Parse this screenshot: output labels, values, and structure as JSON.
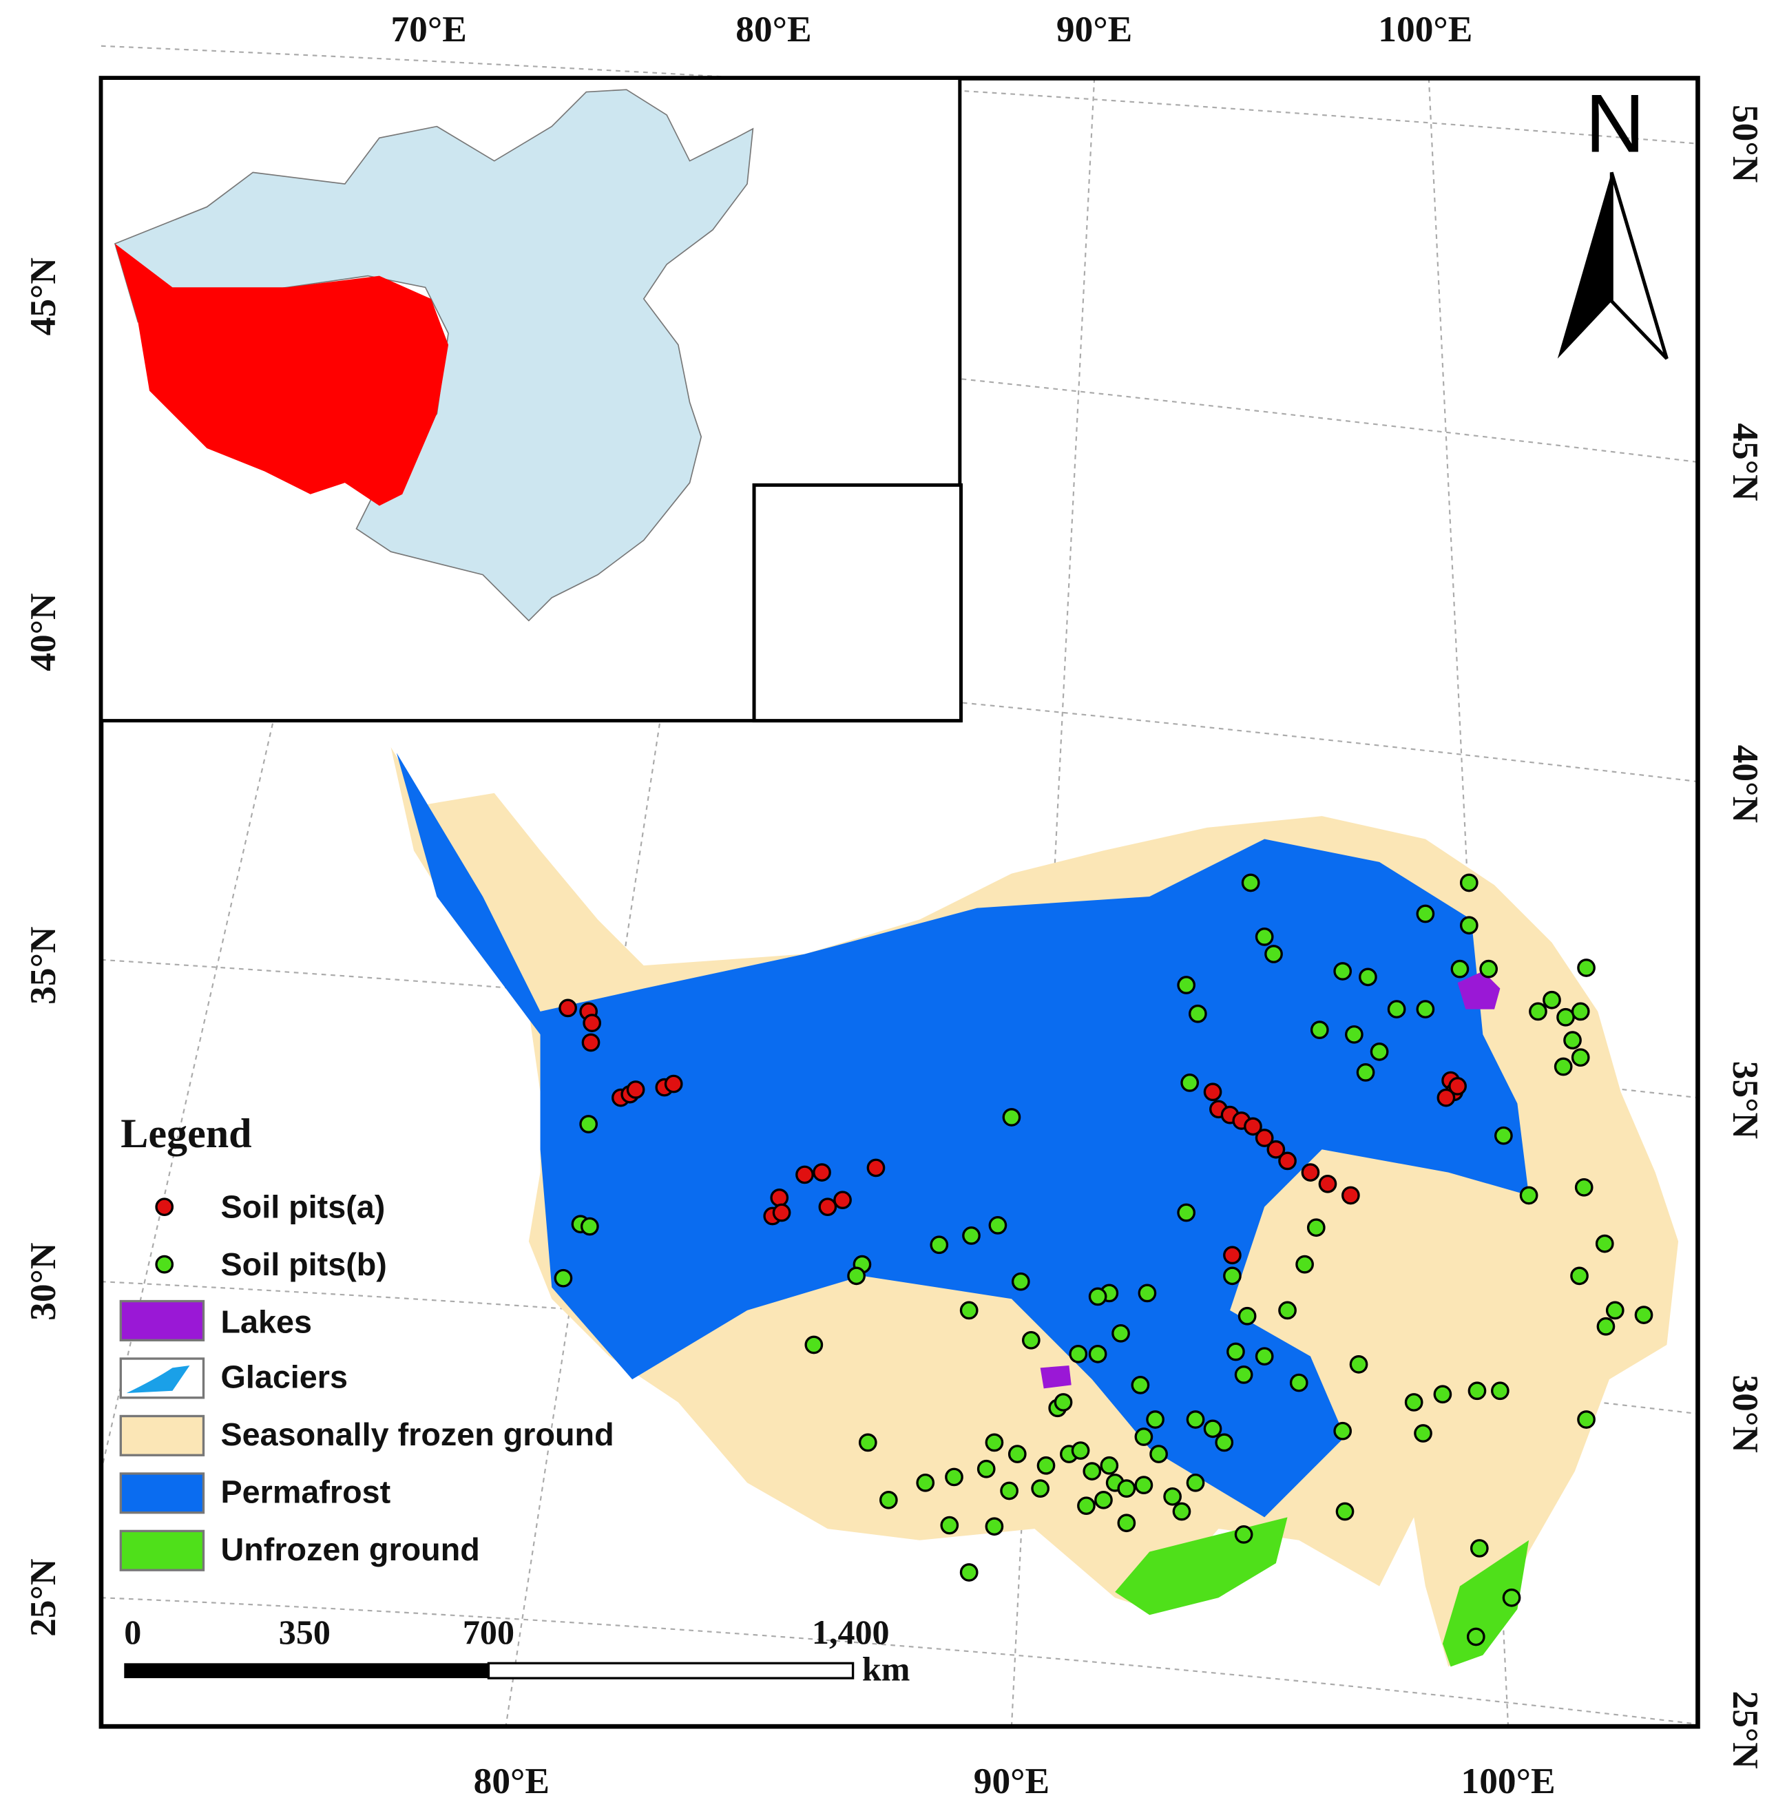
{
  "map": {
    "top_labels": [
      "70°E",
      "80°E",
      "90°E",
      "100°E"
    ],
    "bottom_labels": [
      "80°E",
      "90°E",
      "100°E"
    ],
    "left_labels": [
      "45°N",
      "40°N",
      "35°N",
      "30°N",
      "25°N"
    ],
    "right_labels": [
      "50°N",
      "45°N",
      "40°N",
      "35°N",
      "30°N",
      "25°N"
    ],
    "north": "N",
    "legend": {
      "title": "Legend",
      "items": [
        "Soil pits(a)",
        "Soil pits(b)",
        "Lakes",
        "Glaciers",
        "Seasonally frozen ground",
        "Permafrost",
        "Unfrozen ground"
      ]
    },
    "scale_bar": {
      "labels": [
        "0",
        "350",
        "700",
        "1,400"
      ],
      "unit": "km"
    }
  }
}
